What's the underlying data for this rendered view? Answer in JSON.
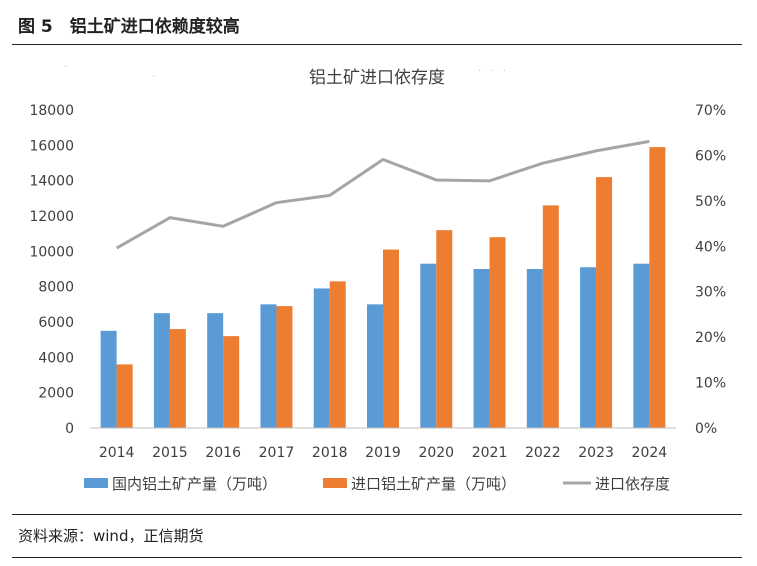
{
  "figure_title": "图 5　铝土矿进口依赖度较高",
  "source": "资料来源：wind，正信期货",
  "chart_data": {
    "type": "bar",
    "title": "铝土矿进口依存度",
    "categories": [
      "2014",
      "2015",
      "2016",
      "2017",
      "2018",
      "2019",
      "2020",
      "2021",
      "2022",
      "2023",
      "2024"
    ],
    "series": [
      {
        "name": "国内铝土矿产量（万吨）",
        "type": "bar",
        "axis": "left",
        "color": "#5b9bd5",
        "values": [
          5500,
          6500,
          6500,
          7000,
          7900,
          7000,
          9300,
          9000,
          9000,
          9100,
          9300
        ]
      },
      {
        "name": "进口铝土矿产量（万吨）",
        "type": "bar",
        "axis": "left",
        "color": "#ed7d31",
        "values": [
          3600,
          5600,
          5200,
          6900,
          8300,
          10100,
          11200,
          10800,
          12600,
          14200,
          15900
        ]
      },
      {
        "name": "进口依存度",
        "type": "line",
        "axis": "right",
        "color": "#a5a5a5",
        "values": [
          39.6,
          46.3,
          44.4,
          49.6,
          51.2,
          59.1,
          54.6,
          54.4,
          58.3,
          61.0,
          63.1
        ]
      }
    ],
    "y_left": {
      "min": 0,
      "max": 18000,
      "ticks": [
        "0",
        "2000",
        "4000",
        "6000",
        "8000",
        "10000",
        "12000",
        "14000",
        "16000",
        "18000"
      ]
    },
    "y_right": {
      "min": 0,
      "max": 70,
      "ticks": [
        "0%",
        "10%",
        "20%",
        "30%",
        "40%",
        "50%",
        "60%",
        "70%"
      ]
    },
    "grid": false,
    "legend_position": "bottom"
  }
}
